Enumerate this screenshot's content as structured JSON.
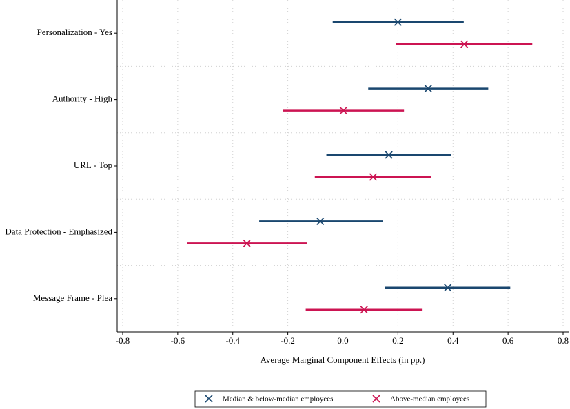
{
  "chart_data": {
    "type": "errorbar",
    "categories": [
      "Personalization - Yes",
      "Authority - High",
      "URL - Top",
      "Data Protection - Emphasized",
      "Message Frame - Plea"
    ],
    "series": [
      {
        "name": "Median & below-median employees",
        "color": "#1a476f",
        "values": [
          0.2,
          0.31,
          0.167,
          -0.082,
          0.381
        ],
        "lower": [
          -0.037,
          0.092,
          -0.06,
          -0.304,
          0.152
        ],
        "upper": [
          0.439,
          0.528,
          0.394,
          0.145,
          0.608
        ]
      },
      {
        "name": "Above-median employees",
        "color": "#cc1452",
        "values": [
          0.441,
          0.002,
          0.11,
          -0.349,
          0.077
        ],
        "lower": [
          0.192,
          -0.217,
          -0.102,
          -0.566,
          -0.135
        ],
        "upper": [
          0.688,
          0.222,
          0.321,
          -0.13,
          0.287
        ]
      }
    ],
    "xlabel": "Average Marginal Component Effects (in pp.)",
    "xlim": [
      -0.82,
      0.82
    ],
    "xticks": [
      -0.8,
      -0.6,
      -0.4,
      -0.2,
      {
        "value": 0,
        "label": "0.0"
      },
      0.2,
      0.4,
      0.6,
      0.8
    ],
    "grid": true
  }
}
